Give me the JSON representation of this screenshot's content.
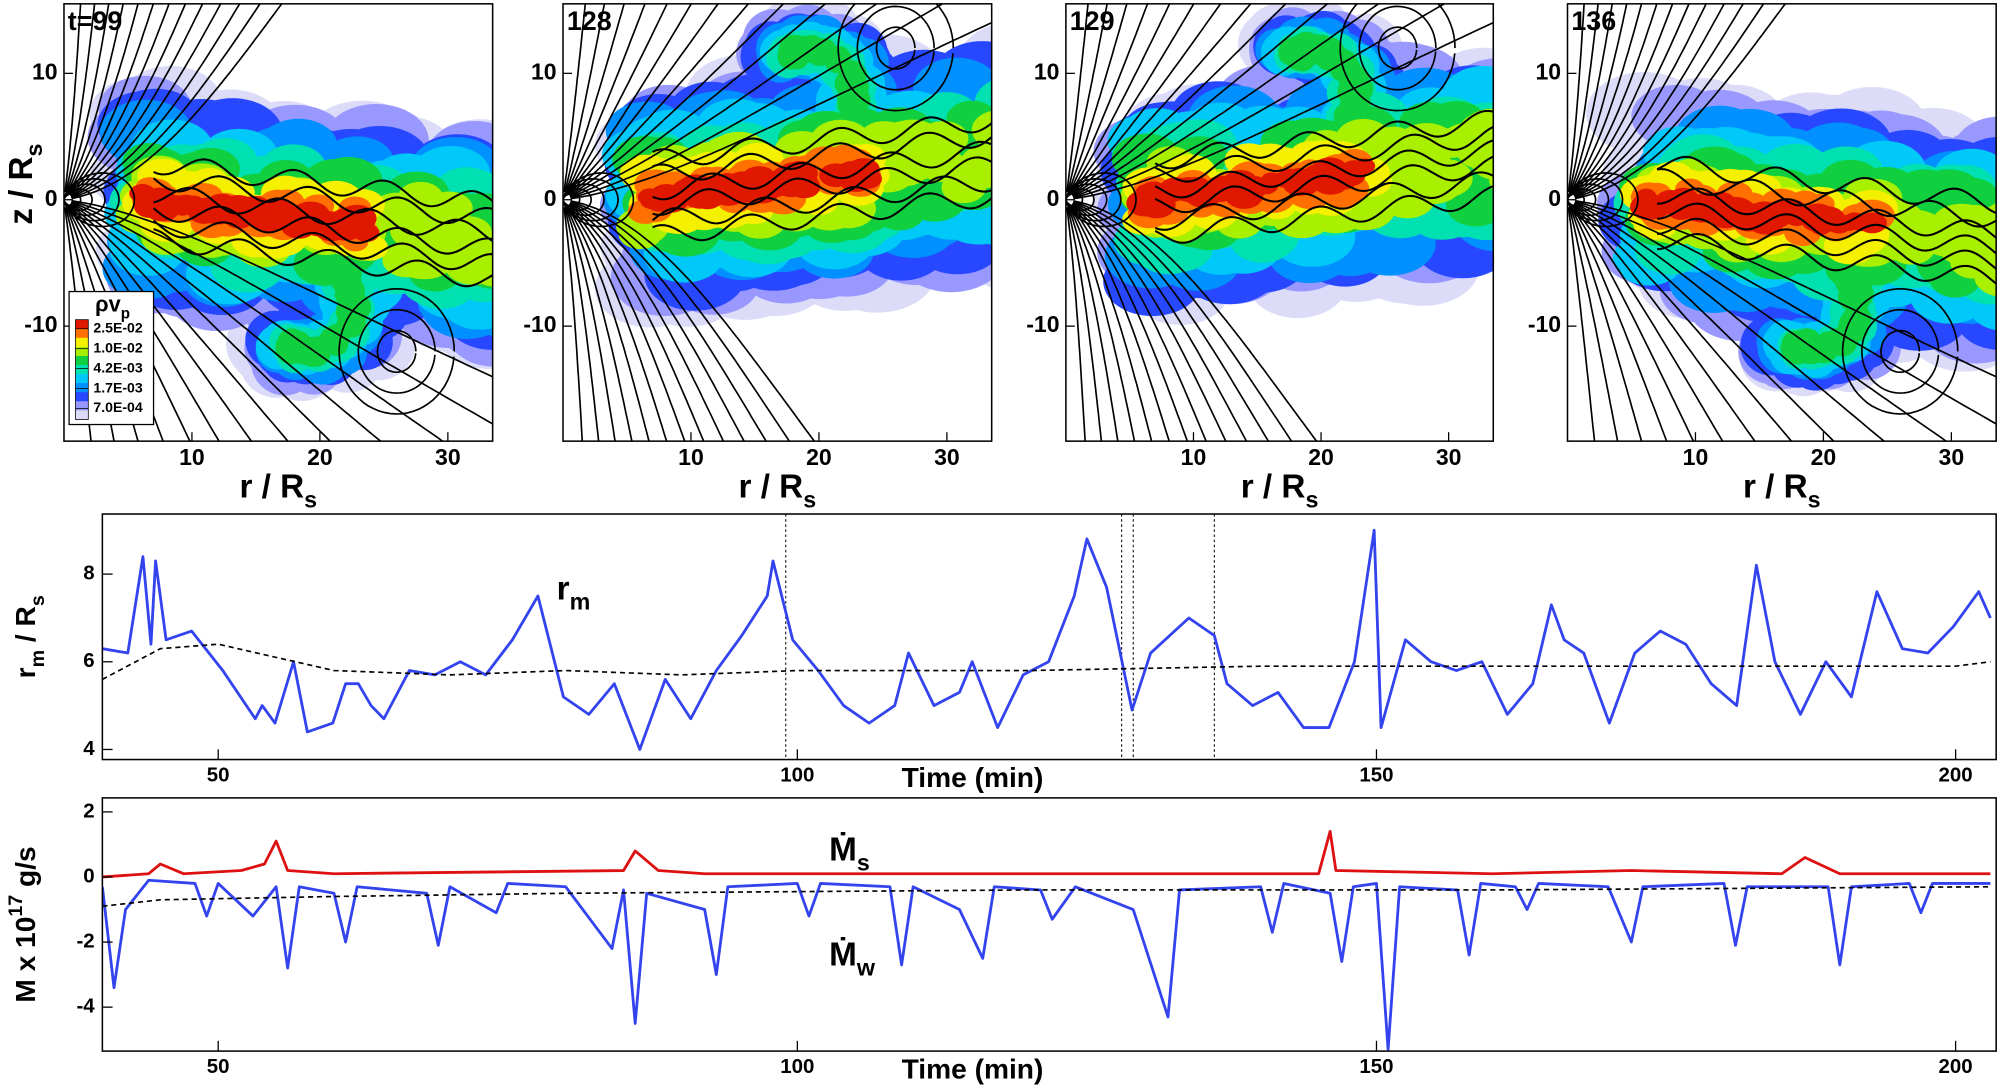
{
  "chart_data": [
    {
      "type": "contour",
      "title": "t=99",
      "xlim": [
        0,
        33.5
      ],
      "ylim": [
        -19.1,
        15.5
      ],
      "xticks": [
        10,
        20,
        30
      ],
      "yticks": [
        -10,
        0,
        10
      ],
      "x_label": [
        {
          "text": "r / R"
        },
        {
          "text": "s",
          "script": "sub"
        }
      ],
      "y_label": [
        {
          "text": "z / R"
        },
        {
          "text": "s",
          "script": "sub"
        }
      ],
      "colorbar": {
        "title": [
          {
            "text": "ρv"
          },
          {
            "text": "p",
            "script": "sub"
          }
        ],
        "levels": [
          {
            "value": 0.025,
            "label": "2.5E-02"
          },
          {
            "value": 0.01,
            "label": "1.0E-02"
          },
          {
            "value": 0.0042,
            "label": "4.2E-03"
          },
          {
            "value": 0.0017,
            "label": "1.7E-03"
          },
          {
            "value": 0.0007,
            "label": "7.0E-04"
          }
        ],
        "colors": [
          "#e01800",
          "#ff7000",
          "#f4f000",
          "#a8f000",
          "#10d040",
          "#00e0b0",
          "#00c8f8",
          "#0090ff",
          "#2848ff",
          "#9898ff",
          "#dcdcf8"
        ]
      }
    },
    {
      "type": "contour",
      "title": "128",
      "xlim": [
        0,
        33.5
      ],
      "ylim": [
        -19.1,
        15.5
      ],
      "xticks": [
        10,
        20,
        30
      ],
      "yticks": [
        -10,
        0,
        10
      ],
      "x_label": [
        {
          "text": "r / R"
        },
        {
          "text": "s",
          "script": "sub"
        }
      ]
    },
    {
      "type": "contour",
      "title": "129",
      "xlim": [
        0,
        33.5
      ],
      "ylim": [
        -19.1,
        15.5
      ],
      "xticks": [
        10,
        20,
        30
      ],
      "yticks": [
        -10,
        0,
        10
      ],
      "x_label": [
        {
          "text": "r / R"
        },
        {
          "text": "s",
          "script": "sub"
        }
      ]
    },
    {
      "type": "contour",
      "title": "136",
      "xlim": [
        0,
        33.5
      ],
      "ylim": [
        -19.1,
        15.5
      ],
      "xticks": [
        10,
        20,
        30
      ],
      "yticks": [
        -10,
        0,
        10
      ],
      "x_label": [
        {
          "text": "r / R"
        },
        {
          "text": "s",
          "script": "sub"
        }
      ]
    },
    {
      "type": "line",
      "xlim": [
        40,
        203.5
      ],
      "ylim": [
        3.77,
        9.37
      ],
      "xticks": [
        50,
        100,
        150,
        200
      ],
      "yticks": [
        4,
        6,
        8
      ],
      "x_label": [
        {
          "text": "Time (min)"
        }
      ],
      "y_label": [
        {
          "text": "r"
        },
        {
          "text": "m",
          "script": "sub"
        },
        {
          "text": " / R"
        },
        {
          "text": "s",
          "script": "sub"
        }
      ],
      "annotations": [
        [
          {
            "text": "r"
          },
          {
            "text": "m",
            "script": "sub"
          }
        ]
      ],
      "vlines": [
        99,
        128,
        129,
        136
      ],
      "series": [
        {
          "color": "#3344ee",
          "style": "solid",
          "x": [
            40,
            42.2,
            43.5,
            44.2,
            44.6,
            45.5,
            47.7,
            50.4,
            53.2,
            53.8,
            54.9,
            56.5,
            57.7,
            59.9,
            61,
            62.1,
            63.2,
            64.3,
            66.5,
            68.7,
            70.9,
            73.1,
            75.4,
            77.6,
            79.8,
            82,
            84.2,
            86.4,
            88.6,
            90.8,
            93,
            95.2,
            97.4,
            97.9,
            99.6,
            101.8,
            104,
            106.2,
            108.4,
            109.6,
            111.8,
            114,
            115.1,
            117.3,
            119.5,
            121.7,
            123.9,
            125,
            126.7,
            128.9,
            130.5,
            133.8,
            136,
            137.1,
            139.3,
            141.5,
            143.7,
            145.9,
            148.1,
            149.8,
            150.4,
            152.5,
            154.7,
            156.9,
            159.1,
            161.3,
            163.5,
            165.1,
            166.2,
            167.9,
            170.1,
            172.3,
            174.5,
            176.7,
            178.9,
            181.1,
            182.8,
            184.4,
            186.6,
            188.8,
            191,
            193.2,
            195.4,
            197.6,
            199.8,
            202,
            203
          ],
          "values": [
            6.3,
            6.2,
            8.4,
            6.4,
            8.3,
            6.5,
            6.7,
            5.8,
            4.7,
            5.0,
            4.6,
            6.0,
            4.4,
            4.6,
            5.5,
            5.5,
            5.0,
            4.7,
            5.8,
            5.7,
            6.0,
            5.7,
            6.5,
            7.5,
            5.2,
            4.8,
            5.5,
            4.0,
            5.6,
            4.7,
            5.8,
            6.6,
            7.5,
            8.3,
            6.5,
            5.8,
            5.0,
            4.6,
            5.0,
            6.2,
            5.0,
            5.3,
            6.0,
            4.5,
            5.7,
            6.0,
            7.5,
            8.8,
            7.7,
            4.9,
            6.2,
            7.0,
            6.6,
            5.5,
            5.0,
            5.3,
            4.5,
            4.5,
            6.0,
            9.0,
            4.5,
            6.5,
            6.0,
            5.8,
            6.0,
            4.8,
            5.5,
            7.3,
            6.5,
            6.2,
            4.6,
            6.2,
            6.7,
            6.4,
            5.5,
            5.0,
            8.2,
            6.0,
            4.8,
            6.0,
            5.2,
            7.6,
            6.3,
            6.2,
            6.8,
            7.6,
            7.0
          ]
        },
        {
          "color": "#000000",
          "style": "dashed",
          "x": [
            40,
            45,
            50,
            55,
            60,
            70,
            80,
            90,
            100,
            120,
            140,
            160,
            180,
            200,
            203
          ],
          "values": [
            5.6,
            6.3,
            6.4,
            6.1,
            5.8,
            5.7,
            5.8,
            5.7,
            5.8,
            5.8,
            5.9,
            5.9,
            5.9,
            5.9,
            6.0
          ]
        }
      ]
    },
    {
      "type": "line",
      "xlim": [
        40,
        203.5
      ],
      "ylim": [
        -5.35,
        2.43
      ],
      "xticks": [
        50,
        100,
        150,
        200
      ],
      "yticks": [
        -4,
        -2,
        0,
        2
      ],
      "x_label": [
        {
          "text": "Time (min)"
        }
      ],
      "y_label": [
        {
          "text": "M x 10"
        },
        {
          "text": "17",
          "script": "super"
        },
        {
          "text": " g/s"
        }
      ],
      "annotations": [
        [
          {
            "text": "Ṁ"
          },
          {
            "text": "s",
            "script": "sub"
          }
        ],
        [
          {
            "text": "Ṁ"
          },
          {
            "text": "w",
            "script": "sub"
          }
        ]
      ],
      "series": [
        {
          "color": "#dd1111",
          "style": "solid",
          "x": [
            40,
            44,
            45,
            47,
            52,
            54,
            55,
            56,
            60,
            85,
            86,
            88,
            92,
            120,
            145,
            146,
            146.5,
            160,
            172,
            185,
            187,
            190,
            203
          ],
          "values": [
            0,
            0.1,
            0.4,
            0.1,
            0.2,
            0.4,
            1.1,
            0.2,
            0.1,
            0.2,
            0.8,
            0.2,
            0.1,
            0.1,
            0.1,
            1.4,
            0.2,
            0.1,
            0.2,
            0.1,
            0.6,
            0.1,
            0.1
          ]
        },
        {
          "color": "#3344ee",
          "style": "solid",
          "x": [
            40,
            41,
            42,
            44,
            48,
            49,
            50,
            53,
            55,
            56,
            57,
            60,
            61,
            62,
            68,
            69,
            70,
            74,
            75,
            80,
            84,
            85,
            86,
            87,
            92,
            93,
            94,
            100,
            101,
            102,
            108,
            109,
            110,
            114,
            116,
            117,
            121,
            122,
            124,
            129,
            132,
            133,
            140,
            141,
            142,
            146,
            147,
            148,
            150,
            151,
            152,
            157,
            158,
            159,
            162,
            163,
            164,
            170,
            172,
            173,
            180,
            181,
            182,
            189,
            190,
            191,
            196,
            197,
            198,
            203
          ],
          "values": [
            -0.3,
            -3.4,
            -1,
            -0.1,
            -0.2,
            -1.2,
            -0.2,
            -1.2,
            -0.3,
            -2.8,
            -0.3,
            -0.5,
            -2.0,
            -0.3,
            -0.5,
            -2.1,
            -0.3,
            -1.1,
            -0.2,
            -0.3,
            -2.2,
            -0.4,
            -4.5,
            -0.5,
            -1.0,
            -3.0,
            -0.3,
            -0.2,
            -1.2,
            -0.2,
            -0.3,
            -2.7,
            -0.3,
            -1.0,
            -2.5,
            -0.3,
            -0.4,
            -1.3,
            -0.3,
            -1.0,
            -4.3,
            -0.4,
            -0.3,
            -1.7,
            -0.2,
            -0.5,
            -2.6,
            -0.3,
            -0.2,
            -5.3,
            -0.3,
            -0.4,
            -2.4,
            -0.2,
            -0.3,
            -1.0,
            -0.2,
            -0.3,
            -2.0,
            -0.3,
            -0.2,
            -2.1,
            -0.3,
            -0.3,
            -2.7,
            -0.3,
            -0.2,
            -1.1,
            -0.2,
            -0.2
          ]
        },
        {
          "color": "#000000",
          "style": "dashed",
          "x": [
            40,
            45,
            60,
            80,
            120,
            160,
            203
          ],
          "values": [
            -0.9,
            -0.7,
            -0.6,
            -0.5,
            -0.4,
            -0.4,
            -0.3
          ]
        }
      ]
    }
  ]
}
